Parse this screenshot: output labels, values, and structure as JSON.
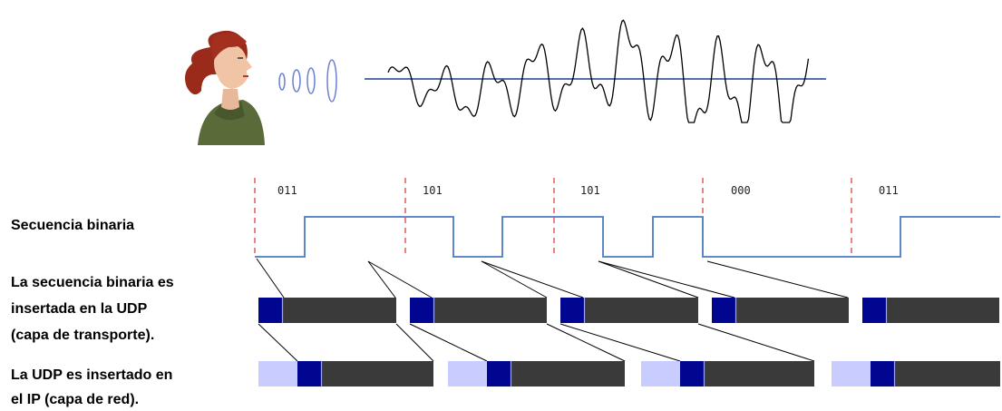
{
  "colors": {
    "signal_line": "#4a7bc4",
    "axis_line": "#1f3f8f",
    "separator": "#e0302f",
    "header_dark": "#00068f",
    "header_light": "#c8ccff",
    "payload": "#3a3a3a",
    "connector": "#000000"
  },
  "icons": {
    "speaker": "woman-speaking-icon",
    "sound": "sound-wave-rings-icon"
  },
  "labels": {
    "binary_sequence": "Secuencia binaria",
    "udp_insertion_line1": "La secuencia binaria es",
    "udp_insertion_line2": "insertada en la UDP",
    "udp_insertion_line3": "(capa de transporte).",
    "ip_insertion_line1": "La UDP es insertado en",
    "ip_insertion_line2": "el IP (capa de red)."
  },
  "groups": [
    "011",
    "101",
    "101",
    "000",
    "011"
  ],
  "bit_sequence": [
    0,
    1,
    1,
    1,
    0,
    1,
    1,
    0,
    1,
    0,
    0,
    0,
    0,
    1,
    1
  ]
}
